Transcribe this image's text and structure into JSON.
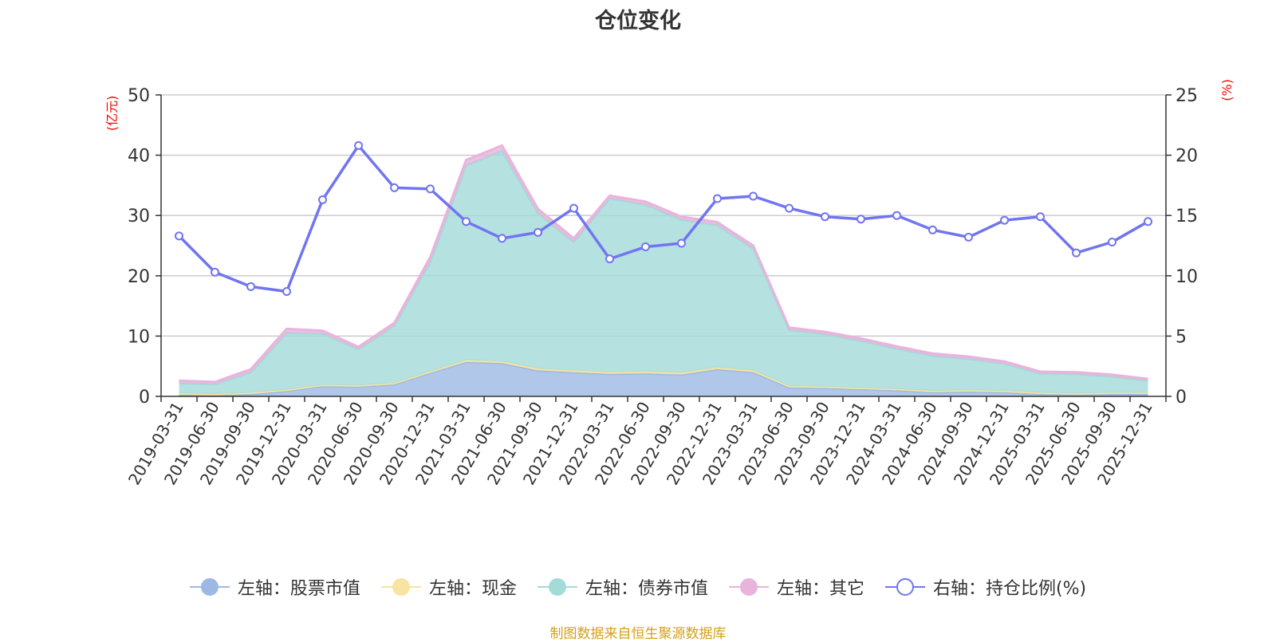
{
  "chart_data": {
    "type": "area",
    "title": "仓位变化",
    "y_left_unit": "(亿元)",
    "y_right_unit": "(%)",
    "y_left_lim": [
      0,
      50
    ],
    "y_left_ticks": [
      0,
      10,
      20,
      30,
      40,
      50
    ],
    "y_right_lim": [
      0,
      25
    ],
    "y_right_ticks": [
      0,
      5,
      10,
      15,
      20,
      25
    ],
    "grid": true,
    "legend_position": "bottom",
    "categories": [
      "2019-03-31",
      "2019-06-30",
      "2019-09-30",
      "2019-12-31",
      "2020-03-31",
      "2020-06-30",
      "2020-09-30",
      "2020-12-31",
      "2021-03-31",
      "2021-06-30",
      "2021-09-30",
      "2021-12-31",
      "2022-03-31",
      "2022-06-30",
      "2022-09-30",
      "2022-12-31",
      "2023-03-31",
      "2023-06-30",
      "2023-09-30",
      "2023-12-31",
      "2024-03-31",
      "2024-06-30",
      "2024-09-30",
      "2024-12-31",
      "2025-03-31",
      "2025-06-30",
      "2025-09-30",
      "2025-12-31"
    ],
    "series": [
      {
        "name": "左轴：股票市值",
        "axis": "left",
        "type": "stacked-area",
        "color": "#9db9e3",
        "values": [
          0.3,
          0.2,
          0.4,
          0.9,
          1.7,
          1.6,
          2.0,
          3.9,
          5.7,
          5.5,
          4.3,
          4.0,
          3.7,
          3.8,
          3.6,
          4.5,
          4.0,
          1.5,
          1.4,
          1.2,
          1.0,
          0.7,
          0.8,
          0.7,
          0.4,
          0.3,
          0.4,
          0.4
        ]
      },
      {
        "name": "左轴：现金",
        "axis": "left",
        "type": "stacked-area",
        "color": "#f7e4a0",
        "values": [
          0.2,
          0.2,
          0.2,
          0.2,
          0.2,
          0.2,
          0.2,
          0.2,
          0.3,
          0.3,
          0.3,
          0.3,
          0.3,
          0.3,
          0.3,
          0.3,
          0.3,
          0.2,
          0.2,
          0.2,
          0.2,
          0.2,
          0.2,
          0.2,
          0.2,
          0.2,
          0.2,
          0.2
        ]
      },
      {
        "name": "左轴：债券市值",
        "axis": "left",
        "type": "stacked-area",
        "color": "#a3dbd9",
        "values": [
          1.7,
          1.6,
          3.4,
          9.4,
          8.5,
          6.0,
          9.5,
          18.2,
          32.3,
          34.9,
          25.8,
          21.3,
          28.8,
          27.7,
          25.4,
          23.6,
          20.2,
          9.3,
          8.7,
          7.8,
          6.7,
          5.8,
          5.2,
          4.5,
          3.2,
          3.2,
          2.7,
          2.0
        ]
      },
      {
        "name": "左轴：其它",
        "axis": "left",
        "type": "stacked-area",
        "color": "#e8b4dc",
        "values": [
          0.4,
          0.4,
          0.5,
          0.7,
          0.5,
          0.4,
          0.5,
          0.8,
          0.9,
          0.9,
          0.7,
          0.6,
          0.5,
          0.5,
          0.5,
          0.5,
          0.5,
          0.4,
          0.4,
          0.4,
          0.4,
          0.4,
          0.4,
          0.4,
          0.3,
          0.3,
          0.3,
          0.3
        ]
      },
      {
        "name": "右轴：持仓比例(%)",
        "axis": "right",
        "type": "line",
        "color": "#7175f0",
        "values": [
          13.3,
          10.3,
          9.1,
          8.7,
          16.3,
          20.8,
          17.3,
          17.2,
          14.5,
          13.1,
          13.6,
          15.6,
          11.4,
          12.4,
          12.7,
          16.4,
          16.6,
          15.6,
          14.9,
          14.7,
          15.0,
          13.8,
          13.2,
          14.6,
          14.9,
          11.9,
          12.8,
          14.5
        ]
      }
    ]
  },
  "source_note": "制图数据来自恒生聚源数据库"
}
